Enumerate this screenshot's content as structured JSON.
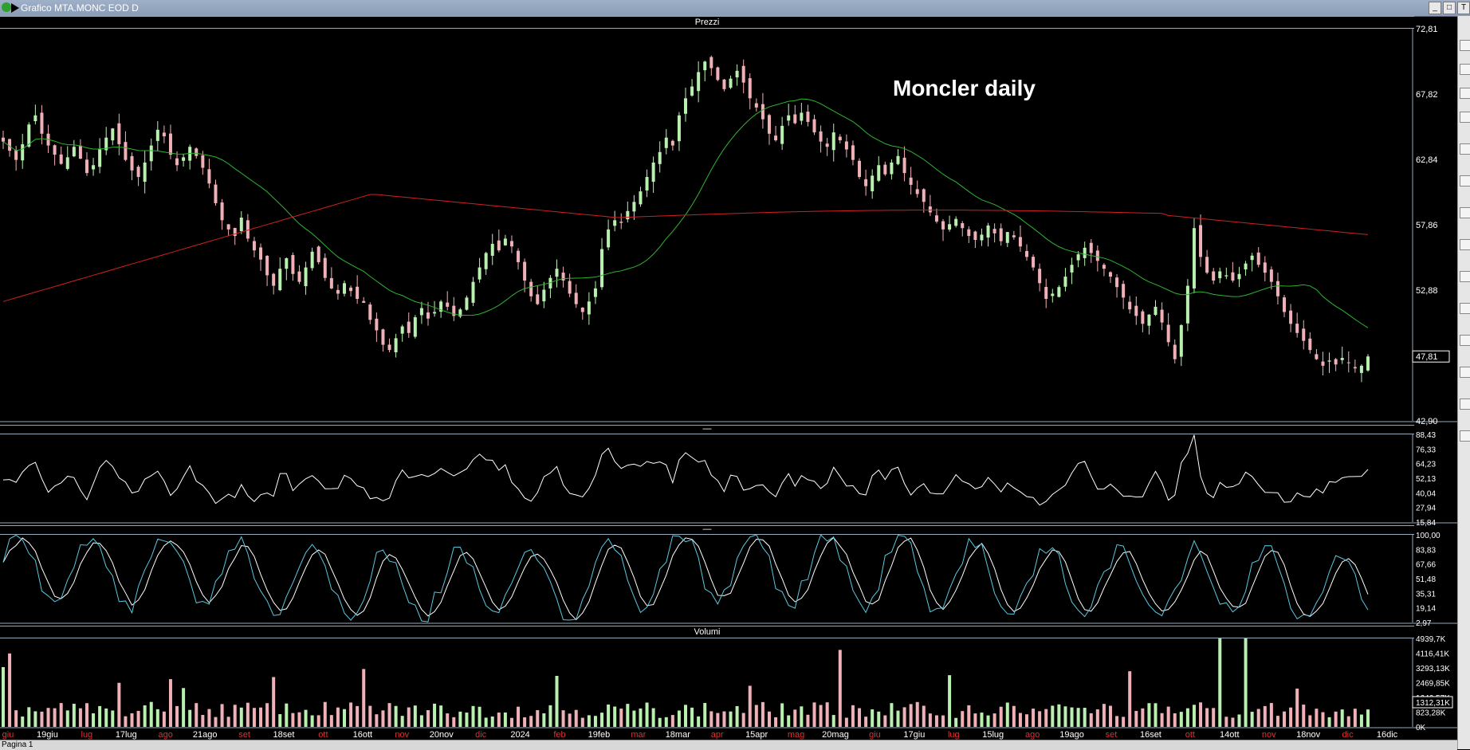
{
  "window": {
    "title": "Grafico MTA.MONC EOD D",
    "buttons": [
      "_",
      "□",
      "T"
    ]
  },
  "panels": {
    "price_title": "Prezzi",
    "rsi_title": "—",
    "stoch_title": "—",
    "volume_title": "Volumi"
  },
  "annotation": "Moncler daily",
  "status": {
    "tab": "Pagina 1"
  },
  "x_labels": [
    {
      "t": "giu",
      "c": "red"
    },
    {
      "t": "19giu",
      "c": "w"
    },
    {
      "t": "lug",
      "c": "red"
    },
    {
      "t": "17lug",
      "c": "w"
    },
    {
      "t": "ago",
      "c": "red"
    },
    {
      "t": "21ago",
      "c": "w"
    },
    {
      "t": "set",
      "c": "red"
    },
    {
      "t": "18set",
      "c": "w"
    },
    {
      "t": "ott",
      "c": "red"
    },
    {
      "t": "16ott",
      "c": "w"
    },
    {
      "t": "nov",
      "c": "red"
    },
    {
      "t": "20nov",
      "c": "w"
    },
    {
      "t": "dic",
      "c": "red"
    },
    {
      "t": "2024",
      "c": "w"
    },
    {
      "t": "feb",
      "c": "red"
    },
    {
      "t": "19feb",
      "c": "w"
    },
    {
      "t": "mar",
      "c": "red"
    },
    {
      "t": "18mar",
      "c": "w"
    },
    {
      "t": "apr",
      "c": "red"
    },
    {
      "t": "15apr",
      "c": "w"
    },
    {
      "t": "mag",
      "c": "red"
    },
    {
      "t": "20mag",
      "c": "w"
    },
    {
      "t": "giu",
      "c": "red"
    },
    {
      "t": "17giu",
      "c": "w"
    },
    {
      "t": "lug",
      "c": "red"
    },
    {
      "t": "15lug",
      "c": "w"
    },
    {
      "t": "ago",
      "c": "red"
    },
    {
      "t": "19ago",
      "c": "w"
    },
    {
      "t": "set",
      "c": "red"
    },
    {
      "t": "16set",
      "c": "w"
    },
    {
      "t": "ott",
      "c": "red"
    },
    {
      "t": "14ott",
      "c": "w"
    },
    {
      "t": "nov",
      "c": "red"
    },
    {
      "t": "18nov",
      "c": "w"
    },
    {
      "t": "dic",
      "c": "red"
    },
    {
      "t": "16dic",
      "c": "w"
    }
  ],
  "colors": {
    "up": "#b9f0b0",
    "down": "#f0b0b8",
    "ma_fast": "#2fb52f",
    "ma_slow": "#d02020",
    "stoch_k": "#5ac8e0",
    "stoch_d": "#ffffff",
    "rsi": "#ffffff",
    "last_label": "#ffffff"
  },
  "chart_data": [
    {
      "type": "candlestick",
      "name": "Prezzi",
      "ylim": [
        42.9,
        72.81
      ],
      "y_ticks": [
        "72,81",
        "67,82",
        "62,84",
        "57,86",
        "52,88",
        "47,81",
        "42,90"
      ],
      "last_price_label": "47,81",
      "close": [
        64.2,
        63.5,
        62.8,
        64.0,
        65.5,
        66.2,
        64.8,
        63.9,
        63.2,
        62.5,
        63.0,
        63.8,
        62.9,
        61.8,
        62.4,
        63.6,
        64.5,
        65.2,
        64.0,
        62.8,
        62.0,
        61.5,
        62.6,
        63.9,
        65.1,
        64.6,
        63.2,
        62.4,
        63.0,
        63.8,
        63.1,
        62.2,
        61.0,
        59.5,
        58.2,
        57.5,
        57.0,
        58.4,
        56.8,
        55.9,
        55.2,
        54.0,
        53.2,
        54.5,
        55.3,
        54.1,
        53.5,
        54.6,
        55.8,
        55.0,
        53.8,
        53.0,
        52.6,
        53.4,
        52.8,
        52.2,
        51.9,
        50.6,
        49.8,
        48.7,
        48.3,
        49.2,
        50.1,
        49.6,
        50.8,
        51.5,
        50.7,
        51.2,
        52.0,
        51.6,
        50.9,
        51.4,
        52.3,
        53.5,
        54.6,
        55.7,
        56.4,
        55.9,
        56.8,
        56.2,
        55.0,
        53.6,
        52.4,
        51.8,
        52.9,
        53.8,
        54.5,
        53.6,
        52.6,
        51.8,
        51.2,
        52.0,
        53.0,
        56.0,
        57.5,
        58.2,
        58.0,
        58.9,
        59.6,
        60.4,
        61.5,
        62.6,
        63.4,
        64.5,
        63.9,
        66.2,
        67.5,
        68.4,
        69.5,
        70.3,
        69.8,
        68.9,
        68.2,
        69.0,
        69.6,
        68.7,
        67.5,
        66.8,
        65.9,
        64.8,
        64.3,
        65.4,
        66.2,
        65.6,
        66.4,
        65.7,
        64.9,
        64.2,
        63.8,
        64.9,
        64.3,
        63.6,
        62.8,
        61.5,
        60.8,
        61.6,
        62.4,
        61.7,
        62.6,
        63.1,
        61.8,
        60.9,
        60.2,
        59.6,
        58.8,
        58.1,
        57.5,
        57.9,
        58.3,
        57.6,
        57.0,
        56.7,
        57.1,
        57.8,
        57.2,
        56.6,
        57.3,
        56.9,
        56.2,
        55.4,
        54.6,
        53.4,
        52.2,
        52.6,
        53.1,
        53.9,
        54.8,
        55.6,
        56.1,
        55.7,
        55.1,
        54.5,
        53.9,
        53.1,
        52.3,
        51.4,
        50.9,
        50.3,
        51.0,
        51.6,
        50.4,
        48.9,
        47.6,
        50.2,
        53.2,
        57.6,
        55.4,
        54.2,
        53.6,
        54.3,
        54.0,
        53.6,
        54.1,
        54.9,
        55.5,
        54.8,
        54.2,
        53.5,
        52.4,
        51.2,
        50.3,
        49.6,
        49.0,
        48.3,
        47.6,
        47.1,
        47.5,
        47.2,
        47.7,
        47.3,
        46.9,
        47.1,
        47.81
      ]
    },
    {
      "type": "line",
      "name": "RSI",
      "ylim": [
        15.84,
        88.43
      ],
      "y_ticks": [
        "88,43",
        "76,33",
        "64,23",
        "52,13",
        "40,04",
        "27,94",
        "15,84"
      ]
    },
    {
      "type": "line",
      "name": "Stocastico",
      "ylim": [
        2.97,
        100.0
      ],
      "y_ticks": [
        "100,00",
        "83,83",
        "67,66",
        "51,48",
        "35,31",
        "19,14",
        "2,97"
      ]
    },
    {
      "type": "bar",
      "name": "Volumi",
      "ylim": [
        0,
        4939.7
      ],
      "y_ticks": [
        "4939,7K",
        "4116,41K",
        "3293,13K",
        "2469,85K",
        "1646,57K",
        "823,28K",
        "0K"
      ],
      "last_value_label": "1312,31K"
    }
  ]
}
